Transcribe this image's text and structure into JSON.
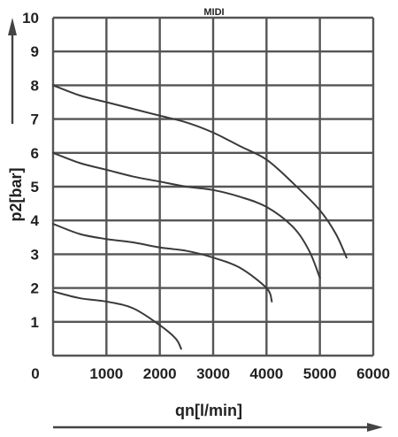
{
  "chart_data": {
    "type": "line",
    "title": "MIDI",
    "xlabel": "qn[l/min]",
    "ylabel": "p2[bar]",
    "xlim": [
      0,
      6000
    ],
    "ylim": [
      0,
      10
    ],
    "x_ticks": [
      "0",
      "1000",
      "2000",
      "3000",
      "4000",
      "5000",
      "6000"
    ],
    "y_ticks": [
      "1",
      "2",
      "3",
      "4",
      "5",
      "6",
      "7",
      "8",
      "9",
      "10"
    ],
    "grid": true,
    "legend": "none",
    "series": [
      {
        "x": [
          0,
          500,
          1000,
          1500,
          2000,
          2500,
          3000,
          3500,
          4000,
          4500,
          5000,
          5300,
          5500
        ],
        "y": [
          8.0,
          7.7,
          7.5,
          7.3,
          7.1,
          6.9,
          6.6,
          6.2,
          5.8,
          5.1,
          4.3,
          3.6,
          2.9
        ]
      },
      {
        "x": [
          0,
          500,
          1000,
          1500,
          2000,
          2500,
          3000,
          3500,
          4000,
          4500,
          4800,
          5000
        ],
        "y": [
          6.0,
          5.7,
          5.5,
          5.3,
          5.15,
          5.0,
          4.9,
          4.7,
          4.4,
          3.8,
          3.1,
          2.3
        ]
      },
      {
        "x": [
          0,
          500,
          1000,
          1500,
          2000,
          2500,
          3000,
          3500,
          4000,
          4100
        ],
        "y": [
          3.9,
          3.6,
          3.45,
          3.35,
          3.2,
          3.1,
          2.9,
          2.6,
          2.0,
          1.6
        ]
      },
      {
        "x": [
          0,
          500,
          1000,
          1500,
          2000,
          2300,
          2400
        ],
        "y": [
          1.9,
          1.7,
          1.6,
          1.4,
          0.9,
          0.5,
          0.2
        ]
      }
    ]
  }
}
